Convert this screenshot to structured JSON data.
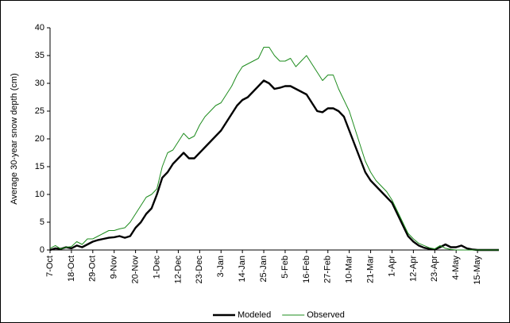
{
  "chart_data": {
    "type": "line",
    "y_label": "Average 30-year snow depth (cm)",
    "categories": [
      "7-Oct",
      null,
      null,
      null,
      "18-Oct",
      null,
      null,
      null,
      "29-Oct",
      null,
      null,
      null,
      "9-Nov",
      null,
      null,
      null,
      "20-Nov",
      null,
      null,
      null,
      "1-Dec",
      null,
      null,
      null,
      "12-Dec",
      null,
      null,
      null,
      "23-Dec",
      null,
      null,
      null,
      "3-Jan",
      null,
      null,
      null,
      "14-Jan",
      null,
      null,
      null,
      "25-Jan",
      null,
      null,
      null,
      "5-Feb",
      null,
      null,
      null,
      "16-Feb",
      null,
      null,
      null,
      "27-Feb",
      null,
      null,
      null,
      "10-Mar",
      null,
      null,
      null,
      "21-Mar",
      null,
      null,
      null,
      "1-Apr",
      null,
      null,
      null,
      "12-Apr",
      null,
      null,
      null,
      "23-Apr",
      null,
      null,
      null,
      "4-May",
      null,
      null,
      null,
      "15-May",
      null,
      null,
      null,
      null
    ],
    "series": [
      {
        "name": "Modeled",
        "color": "#000000",
        "values": [
          0,
          0.3,
          0.2,
          0.5,
          0.3,
          0.8,
          0.5,
          1.0,
          1.5,
          1.8,
          2.0,
          2.2,
          2.3,
          2.5,
          2.2,
          2.5,
          4,
          5,
          6.5,
          7.5,
          10,
          13,
          14,
          15.5,
          16.5,
          17.5,
          16.5,
          16.5,
          17.5,
          18.5,
          19.5,
          20.5,
          21.5,
          23,
          24.5,
          26,
          27,
          27.5,
          28.5,
          29.5,
          30.5,
          30,
          29,
          29.2,
          29.5,
          29.5,
          29,
          28.5,
          28,
          26.5,
          25,
          24.8,
          25.5,
          25.5,
          25,
          24,
          21.5,
          19,
          16.5,
          14,
          12.5,
          11.5,
          10.5,
          9.5,
          8.5,
          6.5,
          4.5,
          2.5,
          1.5,
          0.8,
          0.4,
          0.2,
          0.1,
          0.5,
          1.0,
          0.5,
          0.5,
          0.8,
          0.3,
          0.1,
          0,
          0,
          0,
          0,
          0
        ]
      },
      {
        "name": "Observed",
        "color": "#1e8c1e",
        "values": [
          0.3,
          0.8,
          0.2,
          0.5,
          0.6,
          1.5,
          1.0,
          2.0,
          2.0,
          2.5,
          3.0,
          3.5,
          3.5,
          3.8,
          4.0,
          5.0,
          6.5,
          8,
          9.5,
          10,
          11,
          15,
          17.5,
          18,
          19.5,
          21,
          20,
          20.5,
          22.5,
          24,
          25,
          26,
          26.5,
          28,
          29.5,
          31.5,
          33,
          33.5,
          34,
          34.5,
          36.5,
          36.5,
          35,
          34,
          34,
          34.5,
          33,
          34,
          35,
          33.5,
          32,
          30.5,
          31.5,
          31.5,
          29,
          27,
          25,
          22,
          19,
          16,
          14,
          12.5,
          11.5,
          10.5,
          9,
          7,
          5,
          3,
          2,
          1.2,
          0.8,
          0.4,
          0.2,
          0.8,
          0.3,
          0.1,
          0,
          0,
          0,
          0,
          0,
          0,
          0,
          0,
          0
        ]
      }
    ],
    "ylim": [
      0,
      40
    ],
    "yticks": [
      0,
      5,
      10,
      15,
      20,
      25,
      30,
      35,
      40
    ],
    "legend": "bottom"
  }
}
